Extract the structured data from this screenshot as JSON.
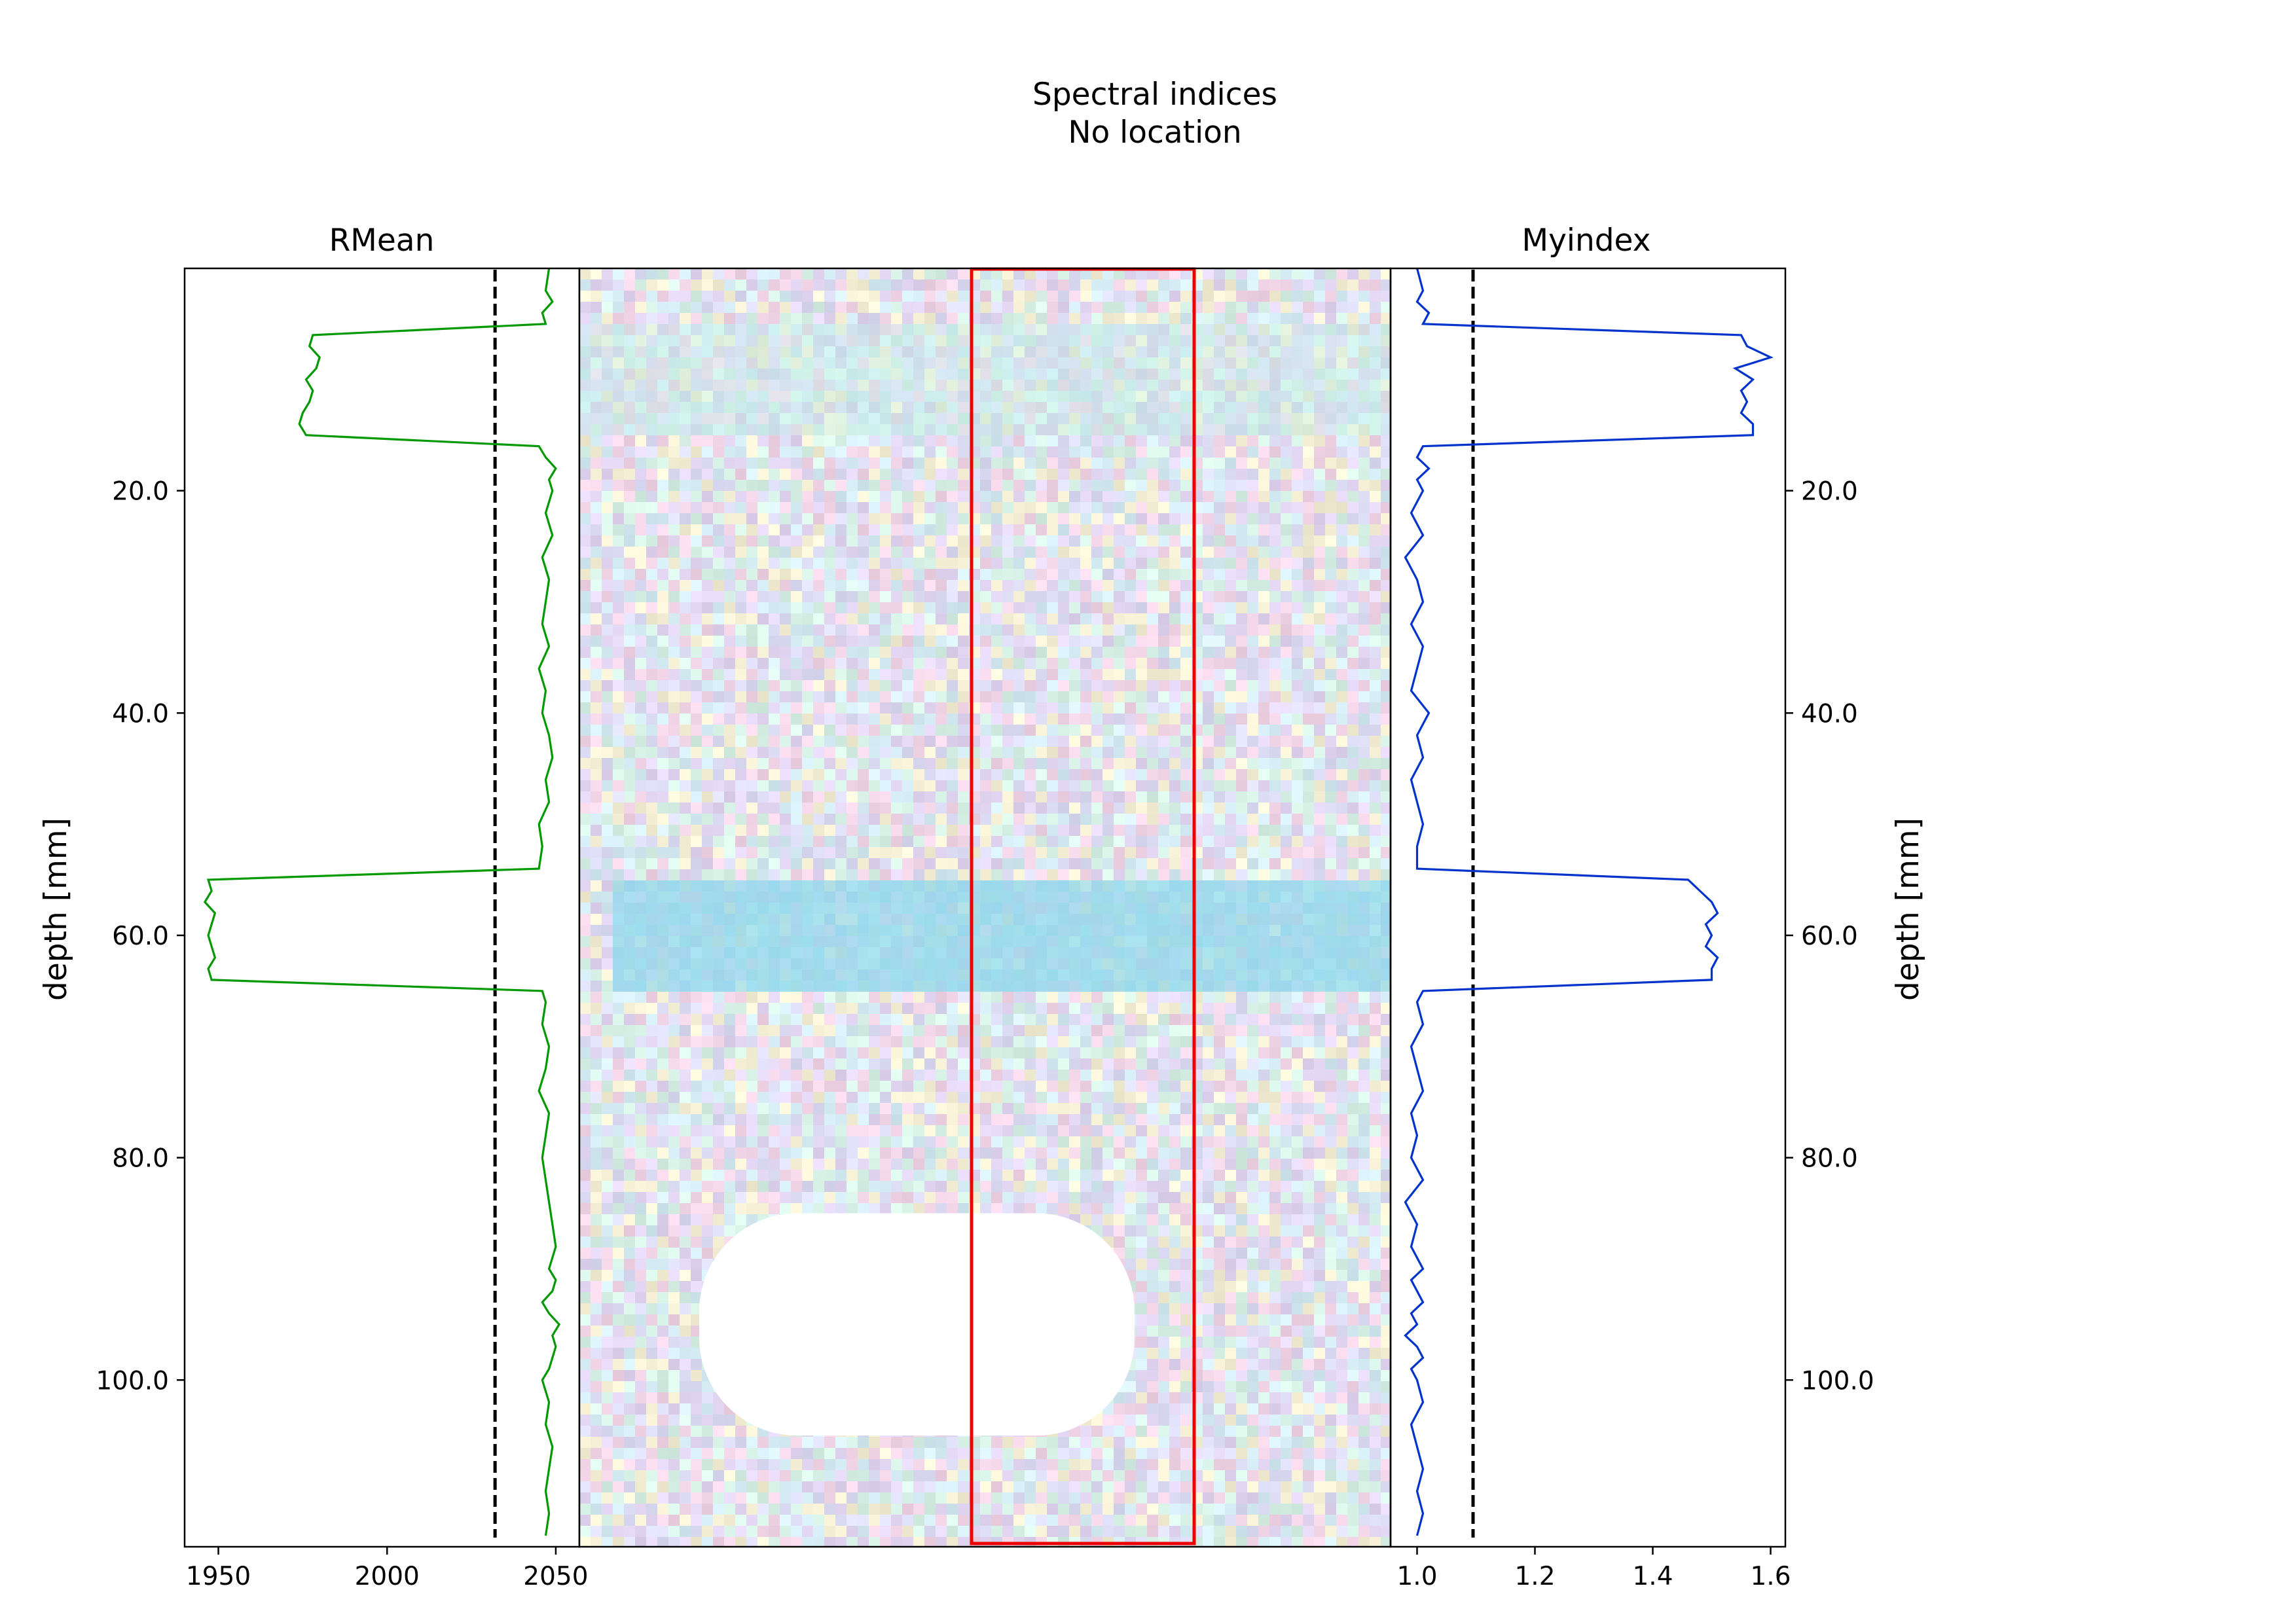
{
  "figure": {
    "title_line1": "Spectral indices",
    "title_line2": "No location"
  },
  "chart_data": [
    {
      "panel": "left",
      "type": "line",
      "title": "RMean",
      "xlabel": "",
      "ylabel": "depth [mm]",
      "xlim": [
        1940,
        2057
      ],
      "ylim": [
        115,
        0
      ],
      "x_ticks": [
        1950,
        2000,
        2050
      ],
      "x_tick_labels": [
        "1950",
        "2000",
        "2050"
      ],
      "y_ticks": [
        20,
        40,
        60,
        80,
        100
      ],
      "y_tick_labels": [
        "20.0",
        "40.0",
        "60.0",
        "80.0",
        "100.0"
      ],
      "grid": false,
      "series": [
        {
          "color": "#009900",
          "depth": [
            0,
            2,
            3,
            4,
            5,
            6,
            7,
            8,
            9,
            10,
            11,
            12,
            13,
            14,
            15,
            16,
            17,
            18,
            19,
            20,
            22,
            24,
            26,
            28,
            30,
            32,
            34,
            36,
            38,
            40,
            42,
            44,
            46,
            48,
            50,
            52,
            54,
            55,
            56,
            57,
            58,
            59,
            60,
            61,
            62,
            63,
            64,
            65,
            66,
            68,
            70,
            72,
            74,
            76,
            78,
            80,
            82,
            84,
            86,
            88,
            90,
            91,
            92,
            93,
            94,
            95,
            96,
            97,
            98,
            99,
            100,
            102,
            104,
            106,
            108,
            110,
            112,
            114
          ],
          "values": [
            2048,
            2047,
            2049,
            2046,
            2047,
            1978,
            1977,
            1980,
            1979,
            1976,
            1978,
            1977,
            1975,
            1974,
            1976,
            2045,
            2047,
            2050,
            2048,
            2049,
            2047,
            2049,
            2046,
            2048,
            2047,
            2046,
            2048,
            2045,
            2047,
            2046,
            2048,
            2049,
            2047,
            2048,
            2045,
            2046,
            2045,
            1947,
            1948,
            1946,
            1949,
            1948,
            1947,
            1948,
            1949,
            1947,
            1948,
            2046,
            2047,
            2046,
            2048,
            2047,
            2045,
            2048,
            2047,
            2046,
            2047,
            2048,
            2049,
            2050,
            2048,
            2050,
            2049,
            2046,
            2048,
            2051,
            2049,
            2050,
            2049,
            2048,
            2046,
            2048,
            2047,
            2049,
            2048,
            2047,
            2048,
            2047
          ]
        }
      ],
      "threshold": {
        "value": 2032,
        "style": "dashed",
        "color": "#000000"
      }
    },
    {
      "panel": "center",
      "type": "heatmap",
      "description_colors": {
        "background_palette": [
          "#f2d6e8",
          "#dcdcf5",
          "#d9f2e8",
          "#f5f0d6",
          "#e2d6f2",
          "#d6ecf5"
        ],
        "band_color_top": "#bfeee6",
        "band_color_middle": "#8fd8ec",
        "hole_color": "#ffffff",
        "selection_box_color": "#ee0000"
      },
      "bands": [
        {
          "from": 5,
          "to": 15,
          "strength": 0.45
        },
        {
          "from": 55,
          "to": 65,
          "strength": 0.85
        }
      ],
      "hole": {
        "depth_from": 85,
        "depth_to": 105
      },
      "selection": {
        "depth_from": 0,
        "depth_to": 115
      }
    },
    {
      "panel": "right",
      "type": "line",
      "title": "Myindex",
      "xlabel": "",
      "ylabel": "depth [mm]",
      "xlim": [
        0.955,
        1.625
      ],
      "ylim": [
        115,
        0
      ],
      "x_ticks": [
        1.0,
        1.2,
        1.4,
        1.6
      ],
      "x_tick_labels": [
        "1.0",
        "1.2",
        "1.4",
        "1.6"
      ],
      "y_ticks": [
        20,
        40,
        60,
        80,
        100
      ],
      "y_tick_labels": [
        "20.0",
        "40.0",
        "60.0",
        "80.0",
        "100.0"
      ],
      "grid": false,
      "series": [
        {
          "color": "#0033cc",
          "depth": [
            0,
            2,
            3,
            4,
            5,
            6,
            7,
            8,
            9,
            10,
            11,
            12,
            13,
            14,
            15,
            16,
            17,
            18,
            19,
            20,
            22,
            24,
            26,
            28,
            30,
            32,
            34,
            36,
            38,
            40,
            42,
            44,
            46,
            48,
            50,
            52,
            54,
            55,
            56,
            57,
            58,
            59,
            60,
            61,
            62,
            63,
            64,
            65,
            66,
            68,
            70,
            72,
            74,
            76,
            78,
            80,
            82,
            84,
            86,
            88,
            90,
            91,
            92,
            93,
            94,
            95,
            96,
            97,
            98,
            99,
            100,
            102,
            104,
            106,
            108,
            110,
            112,
            114
          ],
          "values": [
            1.0,
            1.01,
            1.0,
            1.02,
            1.01,
            1.55,
            1.56,
            1.6,
            1.54,
            1.57,
            1.55,
            1.56,
            1.55,
            1.57,
            1.57,
            1.01,
            1.0,
            1.02,
            1.0,
            1.01,
            0.99,
            1.01,
            0.98,
            1.0,
            1.01,
            0.99,
            1.01,
            1.0,
            0.99,
            1.02,
            1.0,
            1.01,
            0.99,
            1.0,
            1.01,
            1.0,
            1.0,
            1.46,
            1.48,
            1.5,
            1.51,
            1.49,
            1.5,
            1.49,
            1.51,
            1.5,
            1.5,
            1.01,
            1.0,
            1.01,
            0.99,
            1.0,
            1.01,
            0.99,
            1.0,
            0.99,
            1.01,
            0.98,
            1.0,
            0.99,
            1.01,
            0.99,
            1.0,
            1.01,
            0.99,
            1.0,
            0.98,
            1.0,
            1.01,
            0.99,
            1.0,
            1.01,
            0.99,
            1.0,
            1.01,
            1.0,
            1.01,
            1.0
          ]
        }
      ],
      "threshold": {
        "value": 1.095,
        "style": "dashed",
        "color": "#000000"
      }
    }
  ]
}
